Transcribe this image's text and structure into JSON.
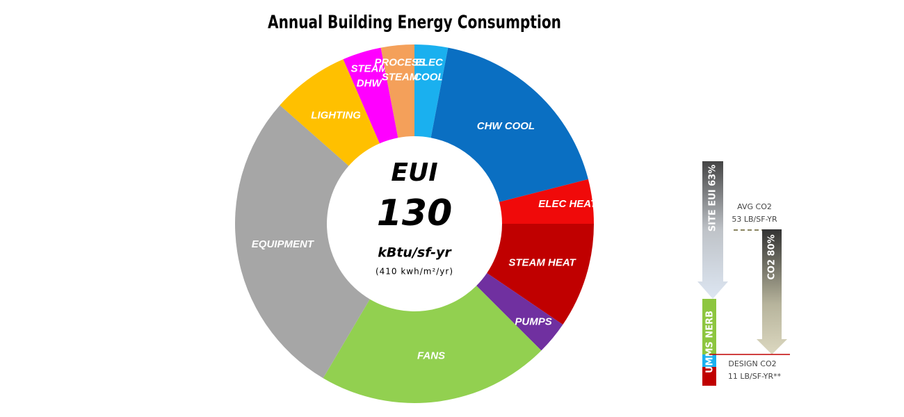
{
  "chart_data": {
    "type": "donut",
    "title": "Annual Building Energy Consumption",
    "categories": [
      [
        "ELEC",
        "COOL"
      ],
      [
        "CHW COOL"
      ],
      [
        "ELEC HEAT"
      ],
      [
        "STEAM HEAT"
      ],
      [
        "PUMPS"
      ],
      [
        "FANS"
      ],
      [
        "EQUIPMENT"
      ],
      [
        "LIGHTING"
      ],
      [
        "STEAM",
        "DHW"
      ],
      [
        "PROCESS",
        "STEAM"
      ]
    ],
    "values": [
      3,
      18,
      4,
      9.5,
      3,
      21,
      28,
      7,
      3.5,
      3
    ],
    "colors": [
      "#1ab0ef",
      "#0a6fc2",
      "#f00a0a",
      "#c00000",
      "#7030a0",
      "#92d050",
      "#a6a6a6",
      "#ffc000",
      "#ff00ff",
      "#f4a05a"
    ],
    "center": {
      "label": "EUI",
      "value": 130,
      "unit": "kBtu/sf-yr",
      "note": "(410 kwh/m²/yr)"
    }
  },
  "sidebar": {
    "site_arrow": "SITE EUI 63%",
    "co2_arrow": "CO2 80%",
    "bar": "UMMS NERB",
    "avg": [
      "AVG CO2",
      "53 LB/SF-YR"
    ],
    "design": [
      "DESIGN CO2",
      "11 LB/SF-YR**"
    ]
  }
}
